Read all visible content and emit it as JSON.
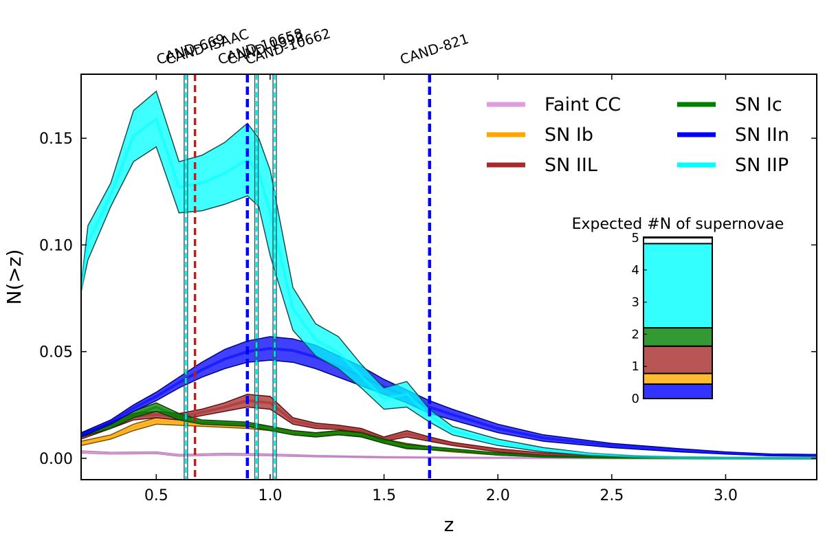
{
  "chart_data": [
    {
      "type": "area",
      "title": "",
      "xlabel": "z",
      "ylabel": "N(>z)",
      "xlim": [
        0.17,
        3.4
      ],
      "ylim": [
        -0.01,
        0.18
      ],
      "xticks": [
        0.5,
        1.0,
        1.5,
        2.0,
        2.5,
        3.0
      ],
      "xtick_labels": [
        "0.5",
        "1.0",
        "1.5",
        "2.0",
        "2.5",
        "3.0"
      ],
      "yticks": [
        0.0,
        0.05,
        0.1,
        0.15
      ],
      "ytick_labels": [
        "0.00",
        "0.05",
        "0.10",
        "0.15"
      ],
      "grid": false,
      "legend": "top-right",
      "series": [
        {
          "name": "Faint CC",
          "color": "#dda0dd",
          "edge": "#9b5f9b",
          "x": [
            0.17,
            0.3,
            0.5,
            0.6,
            0.8,
            1.0,
            1.2,
            1.5,
            2.0,
            2.5,
            3.0,
            3.4
          ],
          "lower": [
            0.0025,
            0.002,
            0.0022,
            0.001,
            0.0015,
            0.0012,
            0.0007,
            0.0003,
            0.0001,
            5e-05,
            0.0,
            0.0
          ],
          "upper": [
            0.0035,
            0.0028,
            0.003,
            0.0018,
            0.0023,
            0.002,
            0.0013,
            0.0007,
            0.0003,
            0.0001,
            0.0,
            0.0
          ]
        },
        {
          "name": "SN Ib",
          "color": "#ffa500",
          "edge": "#7a5200",
          "x": [
            0.17,
            0.3,
            0.4,
            0.5,
            0.6,
            0.7,
            0.8,
            0.9,
            1.0,
            1.1,
            1.2,
            1.3,
            1.4,
            1.5,
            1.6,
            1.7,
            1.8,
            2.0,
            2.2,
            2.5,
            3.0,
            3.4
          ],
          "lower": [
            0.006,
            0.009,
            0.013,
            0.016,
            0.0155,
            0.015,
            0.0145,
            0.014,
            0.013,
            0.011,
            0.01,
            0.011,
            0.0105,
            0.007,
            0.005,
            0.004,
            0.003,
            0.0015,
            0.0008,
            0.0003,
            0.0001,
            0.0
          ],
          "upper": [
            0.008,
            0.011,
            0.016,
            0.019,
            0.018,
            0.017,
            0.0165,
            0.016,
            0.015,
            0.013,
            0.012,
            0.013,
            0.0125,
            0.009,
            0.007,
            0.0055,
            0.0045,
            0.0025,
            0.0014,
            0.0006,
            0.0002,
            0.0001
          ]
        },
        {
          "name": "SN IIL",
          "color": "#a52a2a",
          "edge": "#5a1010",
          "x": [
            0.17,
            0.3,
            0.4,
            0.5,
            0.6,
            0.7,
            0.8,
            0.9,
            1.0,
            1.1,
            1.2,
            1.3,
            1.4,
            1.5,
            1.6,
            1.7,
            1.8,
            2.0,
            2.2,
            2.5,
            3.0,
            3.4
          ],
          "lower": [
            0.009,
            0.014,
            0.018,
            0.019,
            0.018,
            0.02,
            0.022,
            0.024,
            0.023,
            0.016,
            0.014,
            0.0135,
            0.012,
            0.008,
            0.01,
            0.008,
            0.006,
            0.003,
            0.0015,
            0.0005,
            0.0001,
            0.0
          ],
          "upper": [
            0.011,
            0.017,
            0.021,
            0.022,
            0.021,
            0.023,
            0.026,
            0.03,
            0.029,
            0.019,
            0.0165,
            0.0155,
            0.014,
            0.01,
            0.013,
            0.01,
            0.0075,
            0.0045,
            0.0025,
            0.0009,
            0.0002,
            0.0001
          ]
        },
        {
          "name": "SN Ic",
          "color": "#008000",
          "edge": "#0c3d0c",
          "x": [
            0.17,
            0.3,
            0.4,
            0.5,
            0.6,
            0.7,
            0.8,
            0.9,
            1.0,
            1.1,
            1.2,
            1.3,
            1.4,
            1.5,
            1.6,
            1.7,
            1.8,
            2.0,
            2.2,
            2.5,
            3.0,
            3.4
          ],
          "lower": [
            0.01,
            0.014,
            0.019,
            0.022,
            0.018,
            0.016,
            0.0155,
            0.015,
            0.013,
            0.011,
            0.01,
            0.011,
            0.01,
            0.007,
            0.0045,
            0.004,
            0.0035,
            0.0015,
            0.0006,
            0.0002,
            0.0,
            0.0
          ],
          "upper": [
            0.012,
            0.016,
            0.022,
            0.026,
            0.021,
            0.018,
            0.0175,
            0.017,
            0.015,
            0.013,
            0.012,
            0.013,
            0.012,
            0.009,
            0.0065,
            0.0055,
            0.0045,
            0.0025,
            0.0012,
            0.0004,
            0.0001,
            0.0
          ]
        },
        {
          "name": "SN IIn",
          "color": "#0000ff",
          "edge": "#000080",
          "x": [
            0.17,
            0.3,
            0.4,
            0.5,
            0.6,
            0.7,
            0.8,
            0.9,
            1.0,
            1.1,
            1.2,
            1.3,
            1.4,
            1.5,
            1.6,
            1.7,
            1.8,
            2.0,
            2.2,
            2.5,
            2.8,
            3.0,
            3.2,
            3.4
          ],
          "lower": [
            0.01,
            0.016,
            0.022,
            0.027,
            0.033,
            0.038,
            0.042,
            0.045,
            0.046,
            0.045,
            0.042,
            0.038,
            0.034,
            0.03,
            0.026,
            0.021,
            0.018,
            0.012,
            0.008,
            0.005,
            0.003,
            0.002,
            0.0012,
            0.001
          ],
          "upper": [
            0.012,
            0.018,
            0.025,
            0.031,
            0.038,
            0.045,
            0.051,
            0.055,
            0.057,
            0.056,
            0.053,
            0.048,
            0.043,
            0.037,
            0.032,
            0.027,
            0.023,
            0.016,
            0.011,
            0.007,
            0.0045,
            0.003,
            0.002,
            0.0018
          ]
        },
        {
          "name": "SN IIP",
          "color": "#00ffff",
          "edge": "#1a4d4d",
          "x": [
            0.17,
            0.2,
            0.3,
            0.4,
            0.5,
            0.6,
            0.7,
            0.8,
            0.9,
            0.95,
            1.0,
            1.1,
            1.2,
            1.3,
            1.4,
            1.5,
            1.6,
            1.7,
            1.8,
            2.0,
            2.2,
            2.4,
            2.6,
            2.8,
            3.0,
            3.4
          ],
          "lower": [
            0.078,
            0.093,
            0.118,
            0.139,
            0.146,
            0.115,
            0.116,
            0.119,
            0.123,
            0.118,
            0.095,
            0.06,
            0.048,
            0.042,
            0.033,
            0.023,
            0.024,
            0.017,
            0.011,
            0.006,
            0.003,
            0.0015,
            0.0007,
            0.0003,
            0.0001,
            0.0
          ],
          "upper": [
            0.081,
            0.109,
            0.129,
            0.163,
            0.172,
            0.139,
            0.142,
            0.148,
            0.157,
            0.15,
            0.135,
            0.08,
            0.063,
            0.057,
            0.044,
            0.033,
            0.036,
            0.023,
            0.015,
            0.009,
            0.005,
            0.0025,
            0.0012,
            0.0005,
            0.0002,
            0.0
          ]
        }
      ],
      "candidates": [
        {
          "name": "CAND-669",
          "z": 0.63,
          "color": "#2f9f9f",
          "style": "double-cyan"
        },
        {
          "name": "CAND-ISAAC",
          "z": 0.67,
          "color": "#b22222",
          "style": "red-dashed"
        },
        {
          "name": "CAND-10658",
          "z": 0.9,
          "color": "#0000ff",
          "style": "blue-dashed"
        },
        {
          "name": "CAND-1392",
          "z": 0.94,
          "color": "#2f9f9f",
          "style": "double-cyan"
        },
        {
          "name": "CAND-10662",
          "z": 1.02,
          "color": "#2f9f9f",
          "style": "double-cyan"
        },
        {
          "name": "CAND-821",
          "z": 1.7,
          "color": "#0000ff",
          "style": "blue-dashed"
        }
      ]
    },
    {
      "type": "bar",
      "subtype": "stacked",
      "title": "Expected #N of supernovae",
      "ylim": [
        0,
        5
      ],
      "yticks": [
        0,
        1,
        2,
        3,
        4,
        5
      ],
      "ytick_labels": [
        "0",
        "1",
        "2",
        "3",
        "4",
        "5"
      ],
      "segments": [
        {
          "name": "SN IIn",
          "color": "#3333ff",
          "value": 0.45
        },
        {
          "name": "SN Ib",
          "color": "#ffbb33",
          "value": 0.33
        },
        {
          "name": "SN IIL",
          "color": "#b85555",
          "value": 0.85
        },
        {
          "name": "SN Ic",
          "color": "#339933",
          "value": 0.57
        },
        {
          "name": "SN IIP",
          "color": "#33ffff",
          "value": 2.62
        },
        {
          "name": "Faint CC",
          "color": "#ffffff",
          "value": 0.2
        }
      ]
    }
  ]
}
